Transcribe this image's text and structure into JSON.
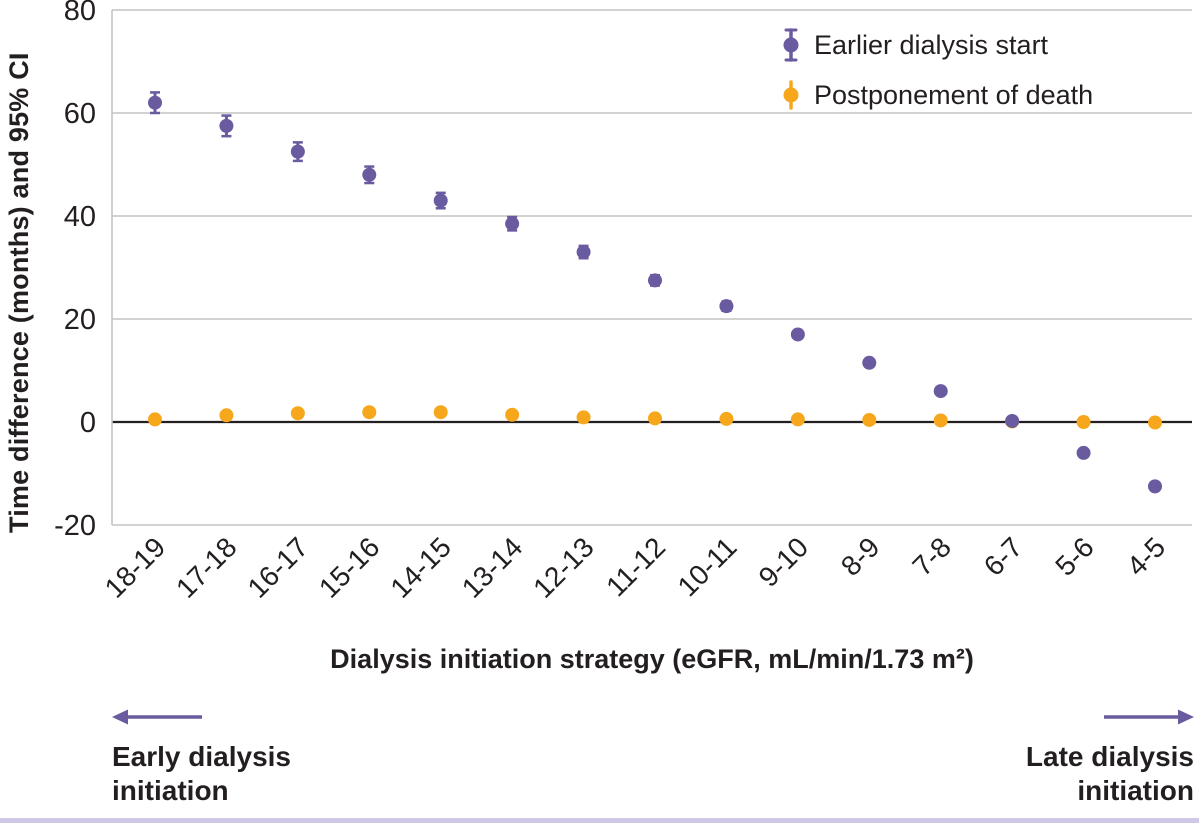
{
  "chart_data": {
    "type": "scatter",
    "title": "",
    "xlabel": "Dialysis initiation strategy (eGFR, mL/min/1.73 m²)",
    "ylabel": "Time difference (months) and 95% CI",
    "ylim": [
      -20,
      80
    ],
    "yticks": [
      80,
      60,
      40,
      20,
      0,
      -20
    ],
    "grid": true,
    "legend_position": "top-right",
    "categories": [
      "18-19",
      "17-18",
      "16-17",
      "15-16",
      "14-15",
      "13-14",
      "12-13",
      "11-12",
      "10-11",
      "9-10",
      "8-9",
      "7-8",
      "6-7",
      "5-6",
      "4-5"
    ],
    "series": [
      {
        "name": "Earlier dialysis start",
        "color": "#6a5a9f",
        "values": [
          62,
          57.5,
          52.5,
          48,
          43,
          38.5,
          33,
          27.5,
          22.5,
          17,
          11.5,
          6,
          0.2,
          -6,
          -12.5
        ],
        "ci_halfwidth": [
          2,
          2,
          1.8,
          1.6,
          1.5,
          1.3,
          1.2,
          1.0,
          0.9,
          0.7,
          0.6,
          0.5,
          0.4,
          0.5,
          0.6
        ]
      },
      {
        "name": "Postponement of death",
        "color": "#f6a71b",
        "values": [
          0.5,
          1.3,
          1.7,
          1.9,
          1.9,
          1.4,
          0.9,
          0.7,
          0.6,
          0.5,
          0.4,
          0.3,
          0.1,
          0.0,
          -0.1
        ],
        "ci_halfwidth": [
          0.3,
          0.3,
          0.3,
          0.3,
          0.3,
          0.3,
          0.3,
          0.3,
          0.3,
          0.3,
          0.3,
          0.3,
          0.3,
          0.3,
          0.3
        ]
      }
    ]
  },
  "annotations": {
    "early_label": "Early dialysis\ninitiation",
    "late_label": "Late dialysis\ninitiation"
  },
  "colors": {
    "grid": "#c4c4c4",
    "zero_line": "#231f20",
    "text": "#231f20",
    "accent": "#6a5a9f",
    "bottom_rule": "#cfc8e8"
  }
}
